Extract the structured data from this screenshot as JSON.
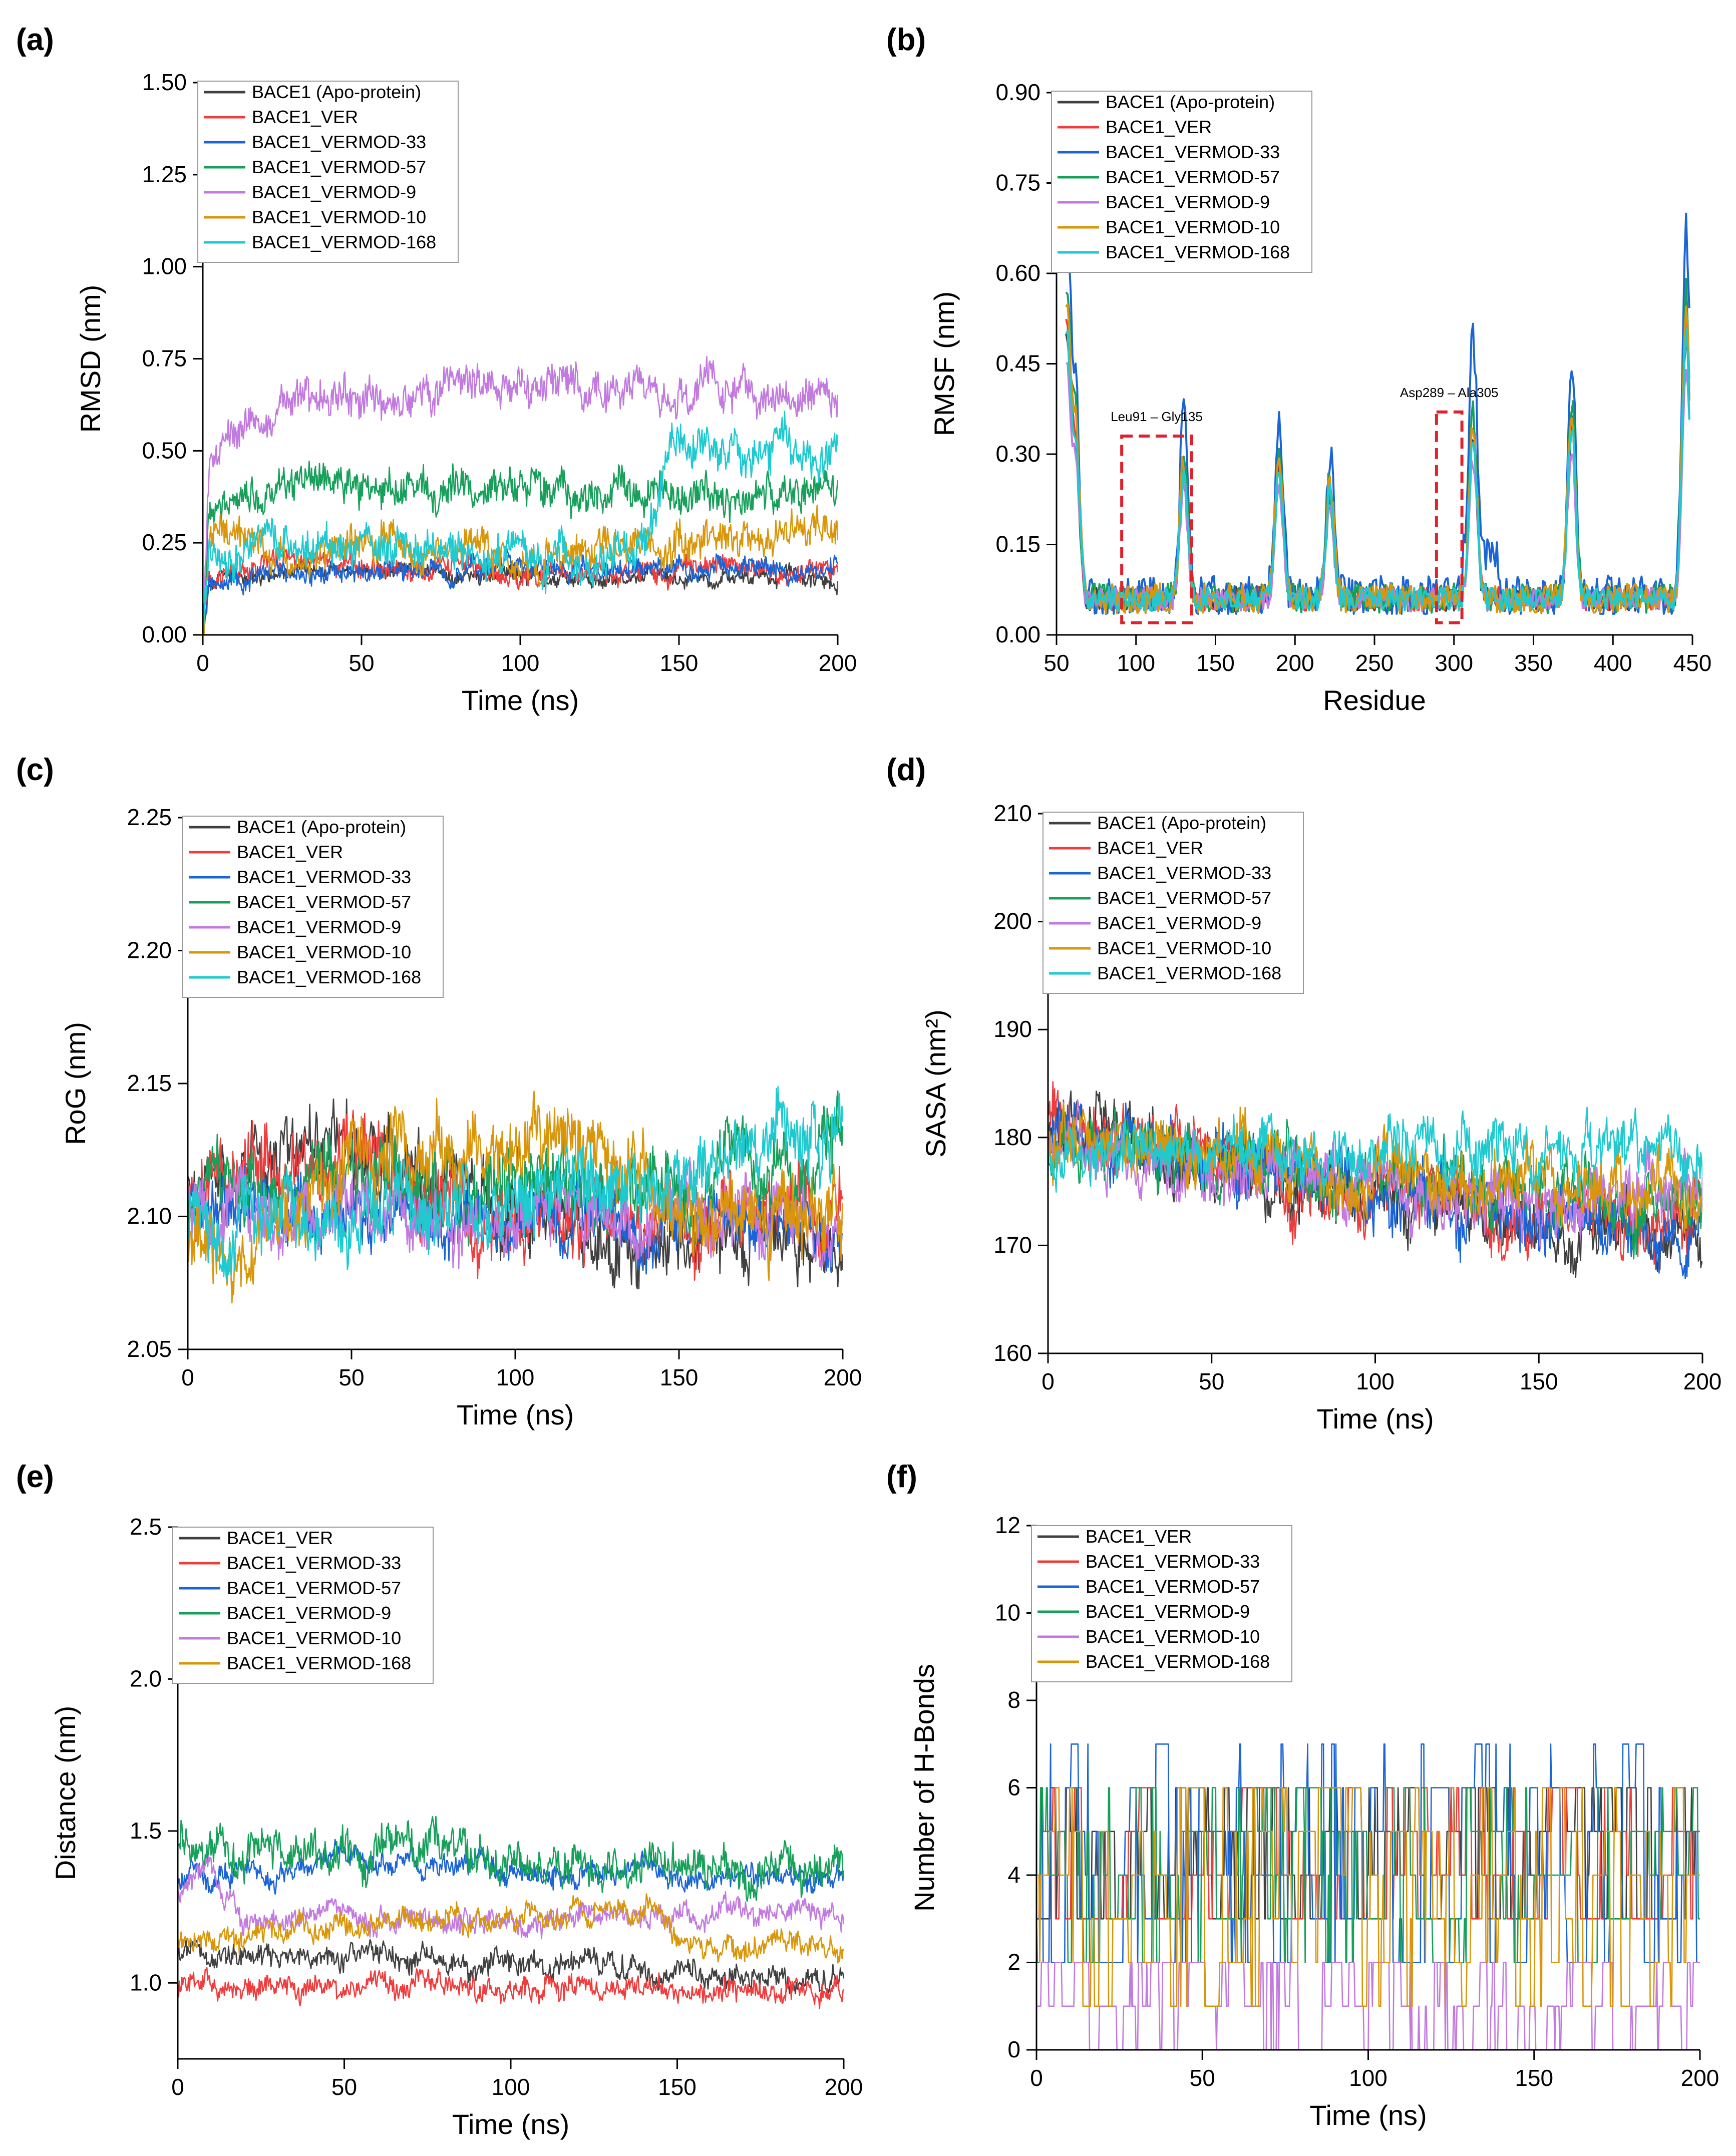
{
  "colors": {
    "apo": "#404040",
    "ver": "#f03c3c",
    "v33": "#1a64d6",
    "v57": "#17a05a",
    "v9": "#c27ae0",
    "v10": "#d9960a",
    "v168": "#1ecad0",
    "annotation": "#e0202a"
  },
  "chart_data": [
    {
      "panel_label": "(a)",
      "type": "line",
      "xlabel": "Time (ns)",
      "ylabel": "RMSD (nm)",
      "xlim": [
        0,
        200
      ],
      "ylim": [
        0,
        1.5
      ],
      "xticks": [
        "0",
        "50",
        "100",
        "150",
        "200"
      ],
      "yticks": [
        "0.00",
        "0.25",
        "0.50",
        "0.75",
        "1.00",
        "1.25",
        "1.50"
      ],
      "legend": [
        "BACE1 (Apo-protein)",
        "BACE1_VER",
        "BACE1_VERMOD-33",
        "BACE1_VERMOD-57",
        "BACE1_VERMOD-9",
        "BACE1_VERMOD-10",
        "BACE1_VERMOD-168"
      ],
      "series": [
        {
          "name": "BACE1 (Apo-protein)",
          "color_key": "apo",
          "noise": 0.02,
          "x": [
            0,
            2,
            10,
            30,
            60,
            100,
            150,
            200
          ],
          "values": [
            0.0,
            0.15,
            0.16,
            0.18,
            0.17,
            0.16,
            0.15,
            0.15
          ]
        },
        {
          "name": "BACE1_VER",
          "color_key": "ver",
          "noise": 0.025,
          "x": [
            0,
            2,
            10,
            30,
            60,
            100,
            150,
            200
          ],
          "values": [
            0.0,
            0.18,
            0.19,
            0.2,
            0.18,
            0.17,
            0.18,
            0.18
          ]
        },
        {
          "name": "BACE1_VERMOD-33",
          "color_key": "v33",
          "noise": 0.025,
          "x": [
            0,
            2,
            10,
            30,
            60,
            100,
            150,
            200
          ],
          "values": [
            0.0,
            0.14,
            0.15,
            0.17,
            0.17,
            0.18,
            0.18,
            0.18
          ]
        },
        {
          "name": "BACE1_VERMOD-57",
          "color_key": "v57",
          "noise": 0.045,
          "x": [
            0,
            2,
            10,
            30,
            60,
            100,
            150,
            200
          ],
          "values": [
            0.0,
            0.3,
            0.37,
            0.4,
            0.4,
            0.4,
            0.38,
            0.39
          ]
        },
        {
          "name": "BACE1_VERMOD-9",
          "color_key": "v9",
          "noise": 0.045,
          "x": [
            0,
            2,
            8,
            20,
            40,
            60,
            80,
            100,
            150,
            200
          ],
          "values": [
            0.0,
            0.45,
            0.52,
            0.6,
            0.65,
            0.63,
            0.72,
            0.67,
            0.65,
            0.65
          ]
        },
        {
          "name": "BACE1_VERMOD-10",
          "color_key": "v10",
          "noise": 0.045,
          "x": [
            0,
            2,
            10,
            30,
            60,
            100,
            150,
            200
          ],
          "values": [
            0.0,
            0.28,
            0.27,
            0.2,
            0.26,
            0.22,
            0.25,
            0.3
          ]
        },
        {
          "name": "BACE1_VERMOD-168",
          "color_key": "v168",
          "noise": 0.05,
          "x": [
            0,
            2,
            10,
            30,
            60,
            100,
            140,
            146,
            200
          ],
          "values": [
            0.0,
            0.2,
            0.22,
            0.25,
            0.25,
            0.2,
            0.22,
            0.5,
            0.5
          ]
        }
      ]
    },
    {
      "panel_label": "(b)",
      "type": "line",
      "xlabel": "Residue",
      "ylabel": "RMSF (nm)",
      "xlim": [
        50,
        450
      ],
      "ylim": [
        0,
        0.9
      ],
      "xticks": [
        "50",
        "100",
        "150",
        "200",
        "250",
        "300",
        "350",
        "400",
        "450"
      ],
      "yticks": [
        "0.00",
        "0.15",
        "0.30",
        "0.45",
        "0.60",
        "0.75",
        "0.90"
      ],
      "legend": [
        "BACE1 (Apo-protein)",
        "BACE1_VER",
        "BACE1_VERMOD-33",
        "BACE1_VERMOD-57",
        "BACE1_VERMOD-9",
        "BACE1_VERMOD-10",
        "BACE1_VERMOD-168"
      ],
      "annotations": [
        "Leu91 – Gly135",
        "Asp289 – Ala305"
      ],
      "annotation_boxes": [
        {
          "x": [
            91,
            135
          ],
          "y": [
            0.02,
            0.33
          ]
        },
        {
          "x": [
            289,
            305
          ],
          "y": [
            0.02,
            0.37
          ]
        }
      ],
      "peaks": [
        [
          56,
          0.53
        ],
        [
          62,
          0.32
        ],
        [
          130,
          0.28
        ],
        [
          190,
          0.29
        ],
        [
          222,
          0.24
        ],
        [
          312,
          0.34
        ],
        [
          374,
          0.36
        ],
        [
          446,
          0.52
        ]
      ],
      "series": [
        {
          "name": "BACE1 (Apo-protein)",
          "color_key": "apo",
          "scale": 0.95,
          "noise": 0.02
        },
        {
          "name": "BACE1_VER",
          "color_key": "ver",
          "scale": 1.0,
          "noise": 0.02
        },
        {
          "name": "BACE1_VERMOD-33",
          "color_key": "v33",
          "scale": 1.35,
          "noise": 0.035
        },
        {
          "name": "BACE1_VERMOD-57",
          "color_key": "v57",
          "scale": 1.1,
          "noise": 0.025
        },
        {
          "name": "BACE1_VERMOD-9",
          "color_key": "v9",
          "scale": 0.85,
          "noise": 0.02
        },
        {
          "name": "BACE1_VERMOD-10",
          "color_key": "v10",
          "scale": 1.05,
          "noise": 0.025
        },
        {
          "name": "BACE1_VERMOD-168",
          "color_key": "v168",
          "scale": 0.95,
          "noise": 0.02
        }
      ]
    },
    {
      "panel_label": "(c)",
      "type": "line",
      "xlabel": "Time (ns)",
      "ylabel": "RoG (nm)",
      "xlim": [
        0,
        200
      ],
      "ylim": [
        2.05,
        2.25
      ],
      "xticks": [
        "0",
        "50",
        "100",
        "150",
        "200"
      ],
      "yticks": [
        "2.05",
        "2.10",
        "2.15",
        "2.20",
        "2.25"
      ],
      "legend": [
        "BACE1 (Apo-protein)",
        "BACE1_VER",
        "BACE1_VERMOD-33",
        "BACE1_VERMOD-57",
        "BACE1_VERMOD-9",
        "BACE1_VERMOD-10",
        "BACE1_VERMOD-168"
      ],
      "series": [
        {
          "name": "BACE1 (Apo-protein)",
          "color_key": "apo",
          "noise": 0.012,
          "x": [
            0,
            50,
            100,
            150,
            200
          ],
          "values": [
            2.115,
            2.125,
            2.1,
            2.095,
            2.09
          ]
        },
        {
          "name": "BACE1_VER",
          "color_key": "ver",
          "noise": 0.012,
          "x": [
            0,
            50,
            100,
            150,
            200
          ],
          "values": [
            2.115,
            2.12,
            2.095,
            2.1,
            2.1
          ]
        },
        {
          "name": "BACE1_VERMOD-33",
          "color_key": "v33",
          "noise": 0.01,
          "x": [
            0,
            50,
            100,
            150,
            200
          ],
          "values": [
            2.11,
            2.1,
            2.095,
            2.1,
            2.095
          ]
        },
        {
          "name": "BACE1_VERMOD-57",
          "color_key": "v57",
          "noise": 0.012,
          "x": [
            0,
            50,
            100,
            150,
            200
          ],
          "values": [
            2.11,
            2.115,
            2.11,
            2.115,
            2.12
          ]
        },
        {
          "name": "BACE1_VERMOD-9",
          "color_key": "v9",
          "noise": 0.01,
          "x": [
            0,
            50,
            100,
            150,
            200
          ],
          "values": [
            2.105,
            2.1,
            2.095,
            2.1,
            2.095
          ]
        },
        {
          "name": "BACE1_VERMOD-10",
          "color_key": "v10",
          "noise": 0.012,
          "x": [
            0,
            15,
            50,
            100,
            130,
            150,
            200
          ],
          "values": [
            2.1,
            2.085,
            2.12,
            2.125,
            2.13,
            2.1,
            2.1
          ]
        },
        {
          "name": "BACE1_VERMOD-168",
          "color_key": "v168",
          "noise": 0.012,
          "x": [
            0,
            50,
            100,
            150,
            200
          ],
          "values": [
            2.1,
            2.1,
            2.105,
            2.12,
            2.13
          ]
        }
      ]
    },
    {
      "panel_label": "(d)",
      "type": "line",
      "xlabel": "Time (ns)",
      "ylabel": "SASA (nm²)",
      "xlim": [
        0,
        200
      ],
      "ylim": [
        160,
        210
      ],
      "xticks": [
        "0",
        "50",
        "100",
        "150",
        "200"
      ],
      "yticks": [
        "160",
        "170",
        "180",
        "190",
        "200",
        "210"
      ],
      "legend": [
        "BACE1 (Apo-protein)",
        "BACE1_VER",
        "BACE1_VERMOD-33",
        "BACE1_VERMOD-57",
        "BACE1_VERMOD-9",
        "BACE1_VERMOD-10",
        "BACE1_VERMOD-168"
      ],
      "series": [
        {
          "name": "BACE1 (Apo-protein)",
          "color_key": "apo",
          "noise": 2.5,
          "x": [
            0,
            50,
            100,
            150,
            200
          ],
          "values": [
            181,
            178,
            174,
            172,
            170
          ]
        },
        {
          "name": "BACE1_VER",
          "color_key": "ver",
          "noise": 2.5,
          "x": [
            0,
            50,
            100,
            150,
            200
          ],
          "values": [
            182,
            178,
            175,
            173,
            172
          ]
        },
        {
          "name": "BACE1_VERMOD-33",
          "color_key": "v33",
          "noise": 2.5,
          "x": [
            0,
            50,
            100,
            150,
            200
          ],
          "values": [
            181,
            178,
            175,
            173,
            171
          ]
        },
        {
          "name": "BACE1_VERMOD-57",
          "color_key": "v57",
          "noise": 2.5,
          "x": [
            0,
            50,
            100,
            150,
            200
          ],
          "values": [
            180,
            178,
            176,
            175,
            174
          ]
        },
        {
          "name": "BACE1_VERMOD-9",
          "color_key": "v9",
          "noise": 2.5,
          "x": [
            0,
            50,
            100,
            150,
            200
          ],
          "values": [
            180,
            177,
            175,
            174,
            174
          ]
        },
        {
          "name": "BACE1_VERMOD-10",
          "color_key": "v10",
          "noise": 2.5,
          "x": [
            0,
            50,
            100,
            150,
            200
          ],
          "values": [
            181,
            178,
            176,
            175,
            175
          ]
        },
        {
          "name": "BACE1_VERMOD-168",
          "color_key": "v168",
          "noise": 2.2,
          "x": [
            0,
            50,
            100,
            150,
            200
          ],
          "values": [
            178,
            179,
            179,
            179,
            179
          ]
        }
      ]
    },
    {
      "panel_label": "(e)",
      "type": "line",
      "xlabel": "Time (ns)",
      "ylabel": "Distance (nm)",
      "xlim": [
        0,
        200
      ],
      "ylim": [
        0.75,
        2.5
      ],
      "xticks": [
        "0",
        "50",
        "100",
        "150",
        "200"
      ],
      "yticks": [
        "1.0",
        "1.5",
        "2.0",
        "2.5"
      ],
      "legend": [
        "BACE1_VER",
        "BACE1_VERMOD-33",
        "BACE1_VERMOD-57",
        "BACE1_VERMOD-9",
        "BACE1_VERMOD-10",
        "BACE1_VERMOD-168"
      ],
      "series": [
        {
          "name": "BACE1_VER",
          "color_key": "apo",
          "noise": 0.035,
          "x": [
            0,
            20,
            100,
            150,
            200
          ],
          "values": [
            1.12,
            1.08,
            1.08,
            1.03,
            1.0
          ]
        },
        {
          "name": "BACE1_VERMOD-33",
          "color_key": "ver",
          "noise": 0.035,
          "x": [
            0,
            50,
            100,
            150,
            200
          ],
          "values": [
            1.0,
            0.98,
            0.98,
            0.98,
            0.97
          ]
        },
        {
          "name": "BACE1_VERMOD-57",
          "color_key": "v33",
          "noise": 0.035,
          "x": [
            0,
            50,
            100,
            150,
            200
          ],
          "values": [
            1.35,
            1.4,
            1.38,
            1.35,
            1.35
          ]
        },
        {
          "name": "BACE1_VERMOD-9",
          "color_key": "v57",
          "noise": 0.06,
          "x": [
            0,
            40,
            80,
            100,
            150,
            200
          ],
          "values": [
            1.45,
            1.45,
            1.45,
            1.38,
            1.38,
            1.38
          ]
        },
        {
          "name": "BACE1_VERMOD-10",
          "color_key": "v9",
          "noise": 0.035,
          "x": [
            0,
            8,
            20,
            50,
            100,
            150,
            200
          ],
          "values": [
            1.3,
            1.4,
            1.2,
            1.22,
            1.2,
            1.22,
            1.22
          ]
        },
        {
          "name": "BACE1_VERMOD-168",
          "color_key": "v10",
          "noise": 0.035,
          "x": [
            0,
            50,
            80,
            145,
            150,
            200
          ],
          "values": [
            1.15,
            1.18,
            1.2,
            1.25,
            1.12,
            1.12
          ]
        }
      ]
    },
    {
      "panel_label": "(f)",
      "type": "line",
      "xlabel": "Time (ns)",
      "ylabel": "Number of H-Bonds",
      "xlim": [
        0,
        200
      ],
      "ylim": [
        0,
        12
      ],
      "xticks": [
        "0",
        "50",
        "100",
        "150",
        "200"
      ],
      "yticks": [
        "0",
        "2",
        "4",
        "6",
        "8",
        "10",
        "12"
      ],
      "legend": [
        "BACE1_VER",
        "BACE1_VERMOD-33",
        "BACE1_VERMOD-57",
        "BACE1_VERMOD-9",
        "BACE1_VERMOD-10",
        "BACE1_VERMOD-168"
      ],
      "series": [
        {
          "name": "BACE1_VER",
          "color_key": "apo",
          "discrete": [
            3,
            6
          ]
        },
        {
          "name": "BACE1_VERMOD-33",
          "color_key": "ver",
          "discrete": [
            3,
            6
          ]
        },
        {
          "name": "BACE1_VERMOD-57",
          "color_key": "v33",
          "discrete": [
            2,
            7
          ]
        },
        {
          "name": "BACE1_VERMOD-9",
          "color_key": "v57",
          "discrete": [
            2,
            6
          ]
        },
        {
          "name": "BACE1_VERMOD-10",
          "color_key": "v9",
          "discrete": [
            0,
            2
          ]
        },
        {
          "name": "BACE1_VERMOD-168",
          "color_key": "v10",
          "discrete": [
            1,
            6
          ]
        }
      ]
    }
  ]
}
